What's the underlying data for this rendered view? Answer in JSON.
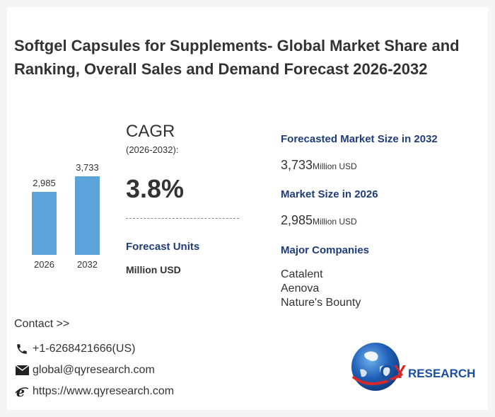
{
  "title": "Softgel Capsules for Supplements- Global Market Share and Ranking, Overall Sales and Demand Forecast 2026-2032",
  "chart_data": {
    "type": "bar",
    "categories": [
      "2026",
      "2032"
    ],
    "values": [
      2985,
      3733
    ],
    "value_labels": [
      "2,985",
      "3,733"
    ],
    "ylim": [
      0,
      3733
    ],
    "bar_color": "#5ba3d9"
  },
  "cagr": {
    "label": "CAGR",
    "range": "(2026-2032):",
    "value": "3.8%"
  },
  "forecast_units": {
    "title": "Forecast Units",
    "value": "Million USD"
  },
  "market_2032": {
    "title": "Forecasted Market Size in 2032",
    "value": "3,733",
    "unit": "Million USD"
  },
  "market_2026": {
    "title": "Market Size in 2026",
    "value": "2,985",
    "unit": "Million USD"
  },
  "companies": {
    "title": "Major Companies",
    "items": [
      "Catalent",
      "Aenova",
      "Nature's Bounty"
    ]
  },
  "contact": {
    "heading": "Contact >>",
    "phone": "+1-6268421666(US)",
    "email": "global@qyresearch.com",
    "website": "https://www.qyresearch.com",
    "phone_icon": "phone-icon",
    "email_icon": "envelope-icon",
    "web_icon": "browser-e-icon"
  },
  "logo": {
    "letter_q": "Q",
    "letter_y": "Y",
    "rest": "RESEARCH",
    "primary_color": "#1a4fa0",
    "accent_color": "#d62828"
  }
}
